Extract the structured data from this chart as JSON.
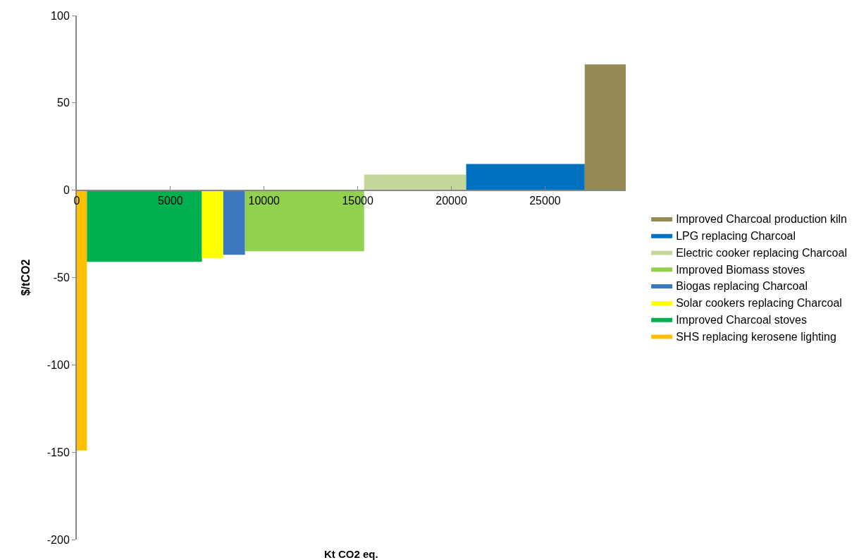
{
  "chart_data": {
    "type": "area",
    "xlabel": "Kt CO2 eq.",
    "ylabel": "$/tCO2",
    "xlim": [
      0,
      29310
    ],
    "xticks": [
      0,
      5000,
      10000,
      15000,
      20000,
      25000
    ],
    "ylim": [
      -200,
      100
    ],
    "yticks": [
      -200,
      -150,
      -100,
      -50,
      0,
      50,
      100
    ],
    "grid": false,
    "legend": "right",
    "series": [
      {
        "name": "SHS replacing kerosene lighting",
        "color": "#ffc000",
        "x": [
          0,
          540
        ],
        "values": [
          -149,
          -149
        ]
      },
      {
        "name": "Improved Charcoal stoves",
        "color": "#00b050",
        "x": [
          540,
          6680
        ],
        "values": [
          -41,
          -41
        ]
      },
      {
        "name": "Solar cookers replacing Charcoal",
        "color": "#ffff00",
        "x": [
          6680,
          7820
        ],
        "values": [
          -39,
          -39
        ]
      },
      {
        "name": "Biogas replacing Charcoal",
        "color": "#3b78c0",
        "x": [
          7820,
          8980
        ],
        "values": [
          -37,
          -37
        ]
      },
      {
        "name": "Improved Biomass stoves",
        "color": "#92d050",
        "x": [
          8980,
          15340
        ],
        "values": [
          -35,
          -35
        ]
      },
      {
        "name": "Electric cooker replacing Charcoal",
        "color": "#c4d79b",
        "x": [
          15340,
          20790
        ],
        "values": [
          9,
          9
        ]
      },
      {
        "name": "LPG replacing Charcoal",
        "color": "#0070c0",
        "x": [
          20790,
          27120
        ],
        "values": [
          15,
          15
        ]
      },
      {
        "name": "Improved Charcoal production kiln",
        "color": "#948a54",
        "x": [
          27120,
          29310
        ],
        "values": [
          72,
          72
        ]
      }
    ]
  }
}
